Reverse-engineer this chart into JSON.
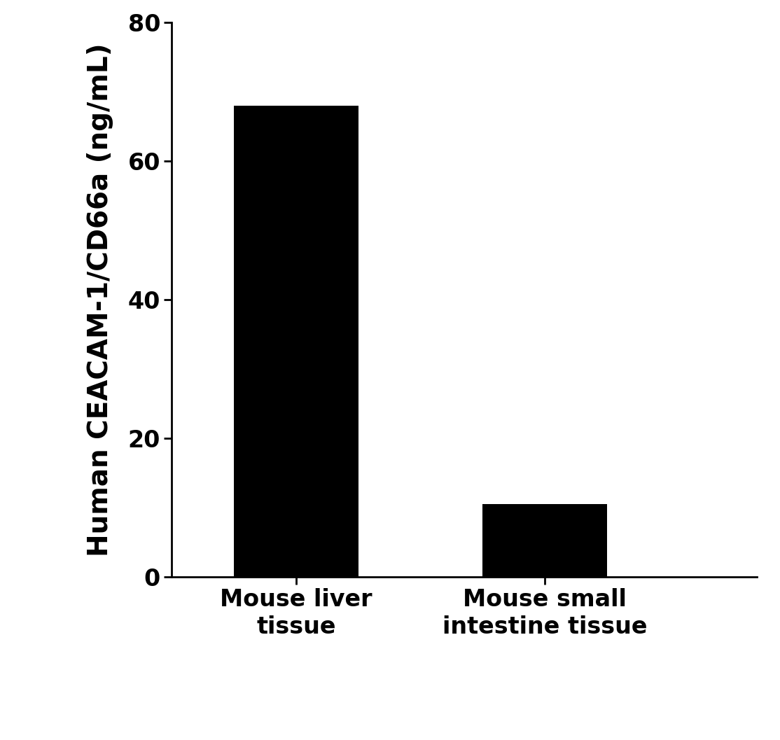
{
  "categories": [
    "Mouse liver\ntissue",
    "Mouse small\nintestine tissue"
  ],
  "values": [
    67.98,
    10.51
  ],
  "bar_color": "#000000",
  "bar_width": 0.5,
  "ylabel": "Human CEACAM-1/CD66a (ng/mL)",
  "ylim": [
    0,
    80
  ],
  "yticks": [
    0,
    20,
    40,
    60,
    80
  ],
  "background_color": "#ffffff",
  "ylabel_fontsize": 28,
  "tick_fontsize": 24,
  "xticklabel_fontsize": 24,
  "font_family": "Arial"
}
